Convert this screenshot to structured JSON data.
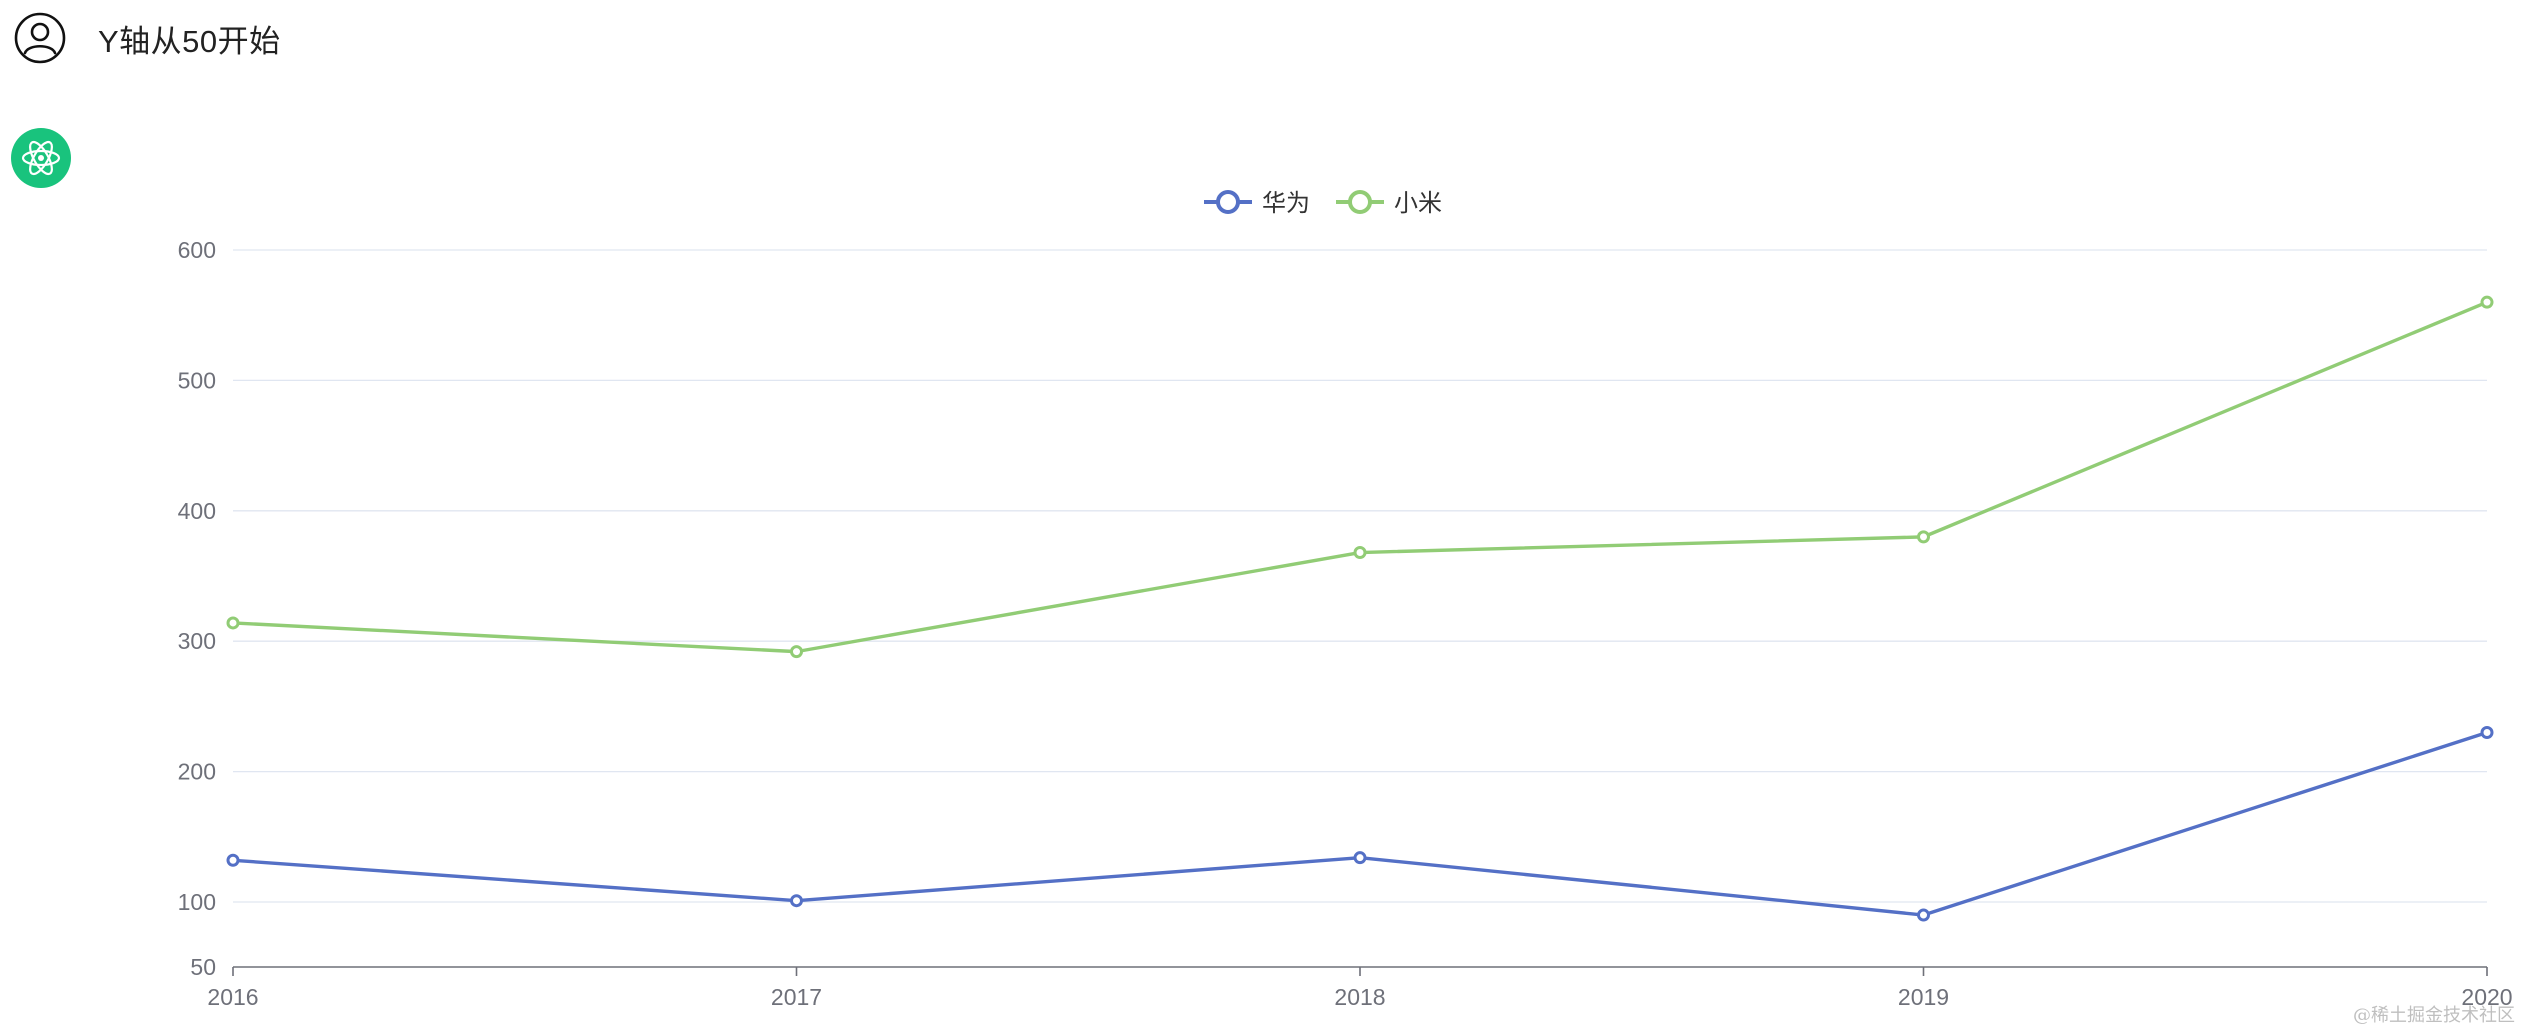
{
  "conversation": {
    "user_prompt": "Y轴从50开始",
    "user_avatar_icon": "user-circle-icon",
    "assistant_avatar_icon": "atom-icon",
    "assistant_avatar_color": "#19c37d"
  },
  "watermark": "@稀土掘金技术社区",
  "chart_data": {
    "type": "line",
    "title": "",
    "xlabel": "",
    "ylabel": "",
    "x": [
      "2016",
      "2017",
      "2018",
      "2019",
      "2020"
    ],
    "ylim": [
      50,
      600
    ],
    "yticks": [
      50,
      100,
      200,
      300,
      400,
      500,
      600
    ],
    "grid": true,
    "legend_position": "top-center",
    "series": [
      {
        "name": "华为",
        "color": "#5470c6",
        "values": [
          132,
          101,
          134,
          90,
          230
        ]
      },
      {
        "name": "小米",
        "color": "#91cc75",
        "values": [
          314,
          292,
          368,
          380,
          560
        ]
      }
    ]
  }
}
